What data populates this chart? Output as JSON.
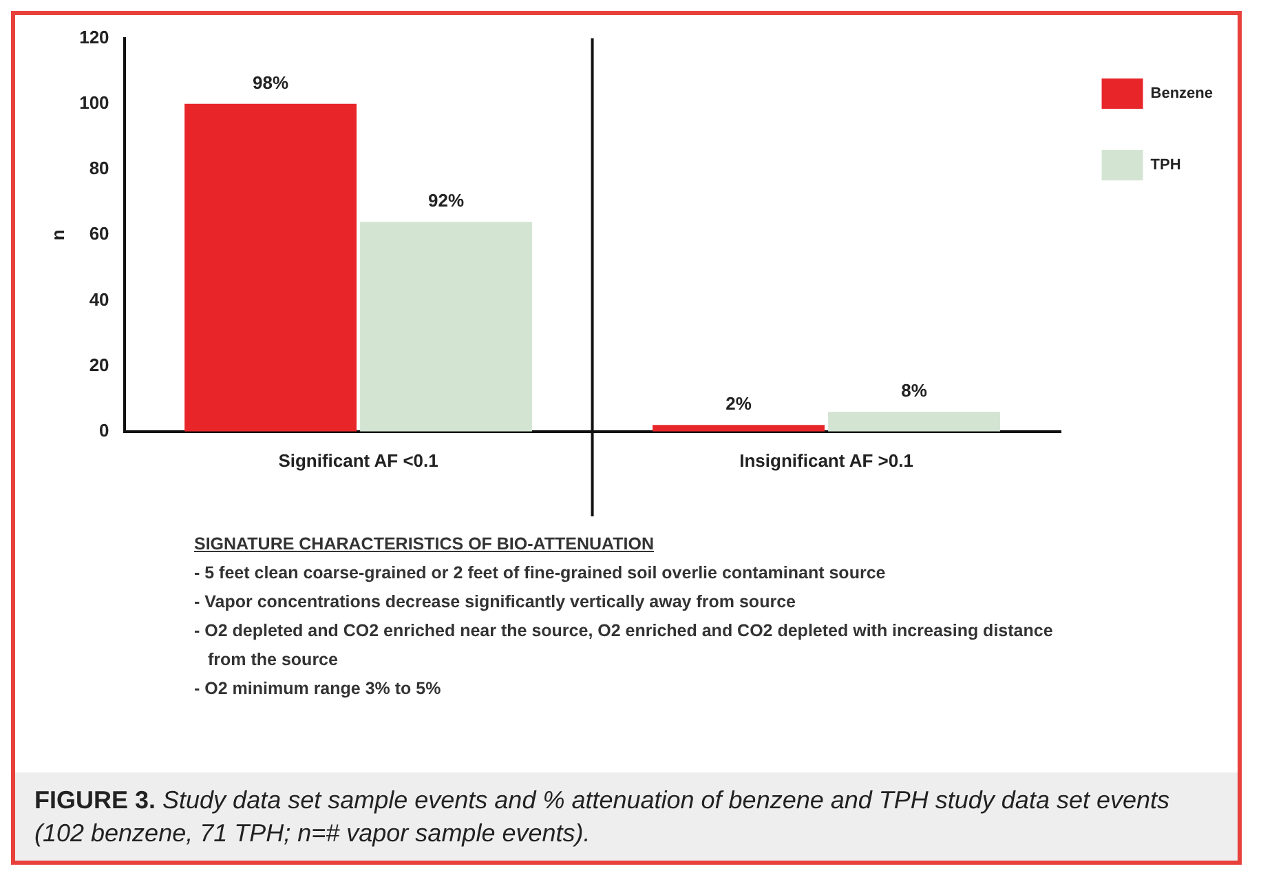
{
  "chart_data": {
    "type": "bar",
    "ylabel": "n",
    "categories": [
      "Significant AF <0.1",
      "Insignificant AF >0.1"
    ],
    "series": [
      {
        "name": "Benzene",
        "color": "#e8262a",
        "values": [
          100,
          2
        ]
      },
      {
        "name": "TPH",
        "color": "#d3e4d3",
        "values": [
          64,
          6
        ]
      }
    ],
    "ylim": [
      0,
      120
    ],
    "yticks": [
      0,
      20,
      40,
      60,
      80,
      100,
      120
    ],
    "grid": false,
    "legend": "top right",
    "annotations": [
      "98%",
      "92%",
      "2%",
      "8%",
      "SIGNATURE CHARACTERISTICS OF BIO-ATTENUATION",
      "- 5 feet clean coarse-grained or 2 feet of fine-grained soil overlie contaminant source",
      "- Vapor concentrations decrease significantly vertically away from source",
      "- O2 depleted and CO2 enriched near the source, O2 enriched and CO2 depleted with increasing distance from the source",
      "- O2 minimum range 3% to 5%",
      "FIGURE 3. Study data set sample events and % attenuation of benzene and TPH study data set events (102 benzene, 71 TPH; n=# vapor sample events)."
    ]
  }
}
